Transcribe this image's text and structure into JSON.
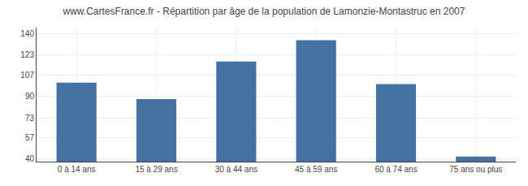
{
  "chart_data": {
    "type": "bar",
    "title": "www.CartesFrance.fr - Répartition par âge de la population de Lamonzie-Montastruc en 2007",
    "categories": [
      "0 à 14 ans",
      "15 à 29 ans",
      "30 à 44 ans",
      "45 à 59 ans",
      "60 à 74 ans",
      "75 ans ou plus"
    ],
    "values": [
      101,
      88,
      118,
      135,
      100,
      42
    ],
    "color": "#4472a0",
    "ylim": [
      38,
      145
    ],
    "yticks": [
      40,
      57,
      73,
      90,
      107,
      123,
      140
    ],
    "grid": true
  }
}
